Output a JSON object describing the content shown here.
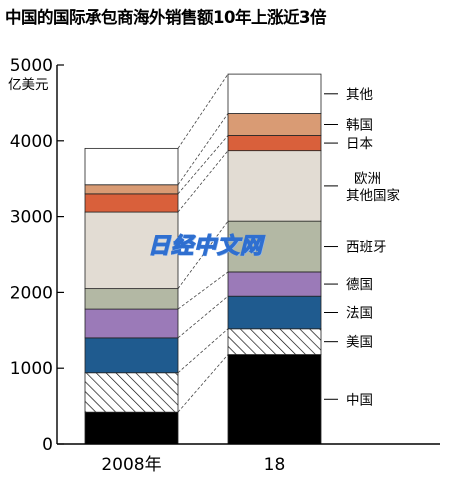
{
  "title": "中国的国际承包商海外销售额10年上涨近3倍",
  "watermark_text": "日经中文网",
  "chart_data": {
    "type": "bar",
    "stacked": true,
    "title": "中国的国际承包商海外销售额10年上涨近3倍",
    "ylabel": "亿美元",
    "ylim": [
      0,
      5000
    ],
    "yticks": [
      0,
      1000,
      2000,
      3000,
      4000,
      5000
    ],
    "categories": [
      "2008年",
      "18"
    ],
    "grid": false,
    "legend": "right",
    "series": [
      {
        "name": "中国",
        "color": "#000000",
        "pattern": "solid",
        "values": [
          420,
          1180
        ]
      },
      {
        "name": "美国",
        "color": "#ffffff",
        "pattern": "hatch",
        "values": [
          520,
          340
        ]
      },
      {
        "name": "法国",
        "color": "#1f5b8f",
        "pattern": "solid",
        "values": [
          460,
          430
        ]
      },
      {
        "name": "德国",
        "color": "#9b7ab8",
        "pattern": "solid",
        "values": [
          380,
          320
        ]
      },
      {
        "name": "西班牙",
        "color": "#b3b8a4",
        "pattern": "solid",
        "values": [
          270,
          670
        ]
      },
      {
        "name": "欧洲\n其他国家",
        "color": "#e2dcd3",
        "pattern": "solid",
        "values": [
          1010,
          930
        ]
      },
      {
        "name": "日本",
        "color": "#d9603b",
        "pattern": "solid",
        "values": [
          240,
          200
        ]
      },
      {
        "name": "韩国",
        "color": "#d99b74",
        "pattern": "solid",
        "values": [
          120,
          290
        ]
      },
      {
        "name": "其他",
        "color": "#ffffff",
        "pattern": "solid",
        "values": [
          480,
          520
        ]
      }
    ]
  }
}
